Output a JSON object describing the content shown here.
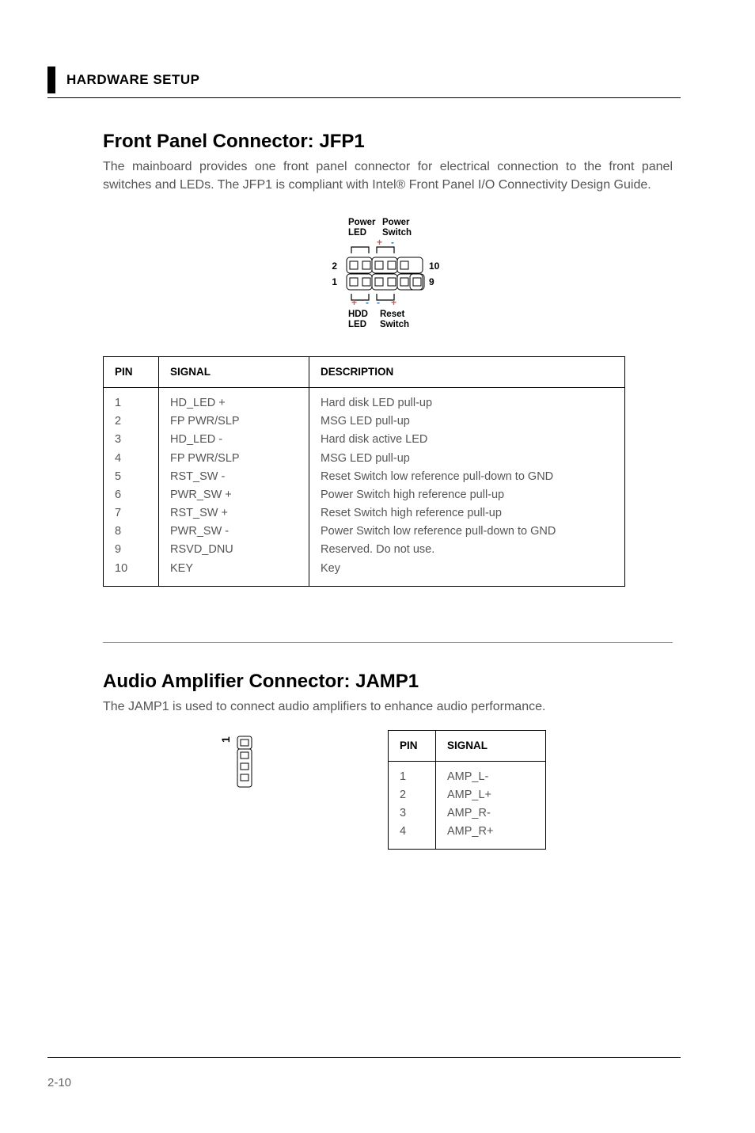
{
  "header": {
    "title": "HARDWARE SETUP"
  },
  "section1": {
    "title": "Front Panel Connector: JFP1",
    "body": "The mainboard provides one front panel connector for electrical connection to the front panel switches and LEDs. The JFP1 is compliant with Intel® Front Panel I/O Connectivity Design Guide.",
    "diagram": {
      "topLeftLabel": "Power",
      "topLeftSub": "LED",
      "topRightLabel": "Power",
      "topRightSub": "Switch",
      "bottomLeftLabel": "HDD",
      "bottomLeftSub": "LED",
      "bottomRightLabel": "Reset",
      "bottomRightSub": "Switch",
      "leftTop": "2",
      "leftBottom": "1",
      "rightTop": "10",
      "rightBottom": "9",
      "plusColor": "#d9534f",
      "minusColor": "#2d6fb3",
      "strokeColor": "#000000"
    },
    "table": {
      "headers": [
        "PIN",
        "SIGNAL",
        "DESCRIPTION"
      ],
      "rows": [
        [
          "1",
          "HD_LED +",
          "Hard disk LED pull-up"
        ],
        [
          "2",
          "FP PWR/SLP",
          "MSG LED pull-up"
        ],
        [
          "3",
          "HD_LED -",
          "Hard disk active LED"
        ],
        [
          "4",
          "FP PWR/SLP",
          "MSG LED pull-up"
        ],
        [
          "5",
          "RST_SW -",
          "Reset Switch low reference pull-down to GND"
        ],
        [
          "6",
          "PWR_SW +",
          "Power Switch high reference pull-up"
        ],
        [
          "7",
          "RST_SW +",
          "Reset Switch high reference pull-up"
        ],
        [
          "8",
          "PWR_SW -",
          "Power Switch low reference pull-down to GND"
        ],
        [
          "9",
          "RSVD_DNU",
          "Reserved. Do not use."
        ],
        [
          "10",
          "KEY",
          "Key"
        ]
      ]
    }
  },
  "section2": {
    "title": "Audio Amplifier Connector: JAMP1",
    "body": "The JAMP1 is used to connect audio amplifiers to enhance audio performance.",
    "diagramLabel": "1",
    "table": {
      "headers": [
        "PIN",
        "SIGNAL"
      ],
      "rows": [
        [
          "1",
          "AMP_L-"
        ],
        [
          "2",
          "AMP_L+"
        ],
        [
          "3",
          "AMP_R-"
        ],
        [
          "4",
          "AMP_R+"
        ]
      ]
    }
  },
  "pageNumber": "2-10"
}
